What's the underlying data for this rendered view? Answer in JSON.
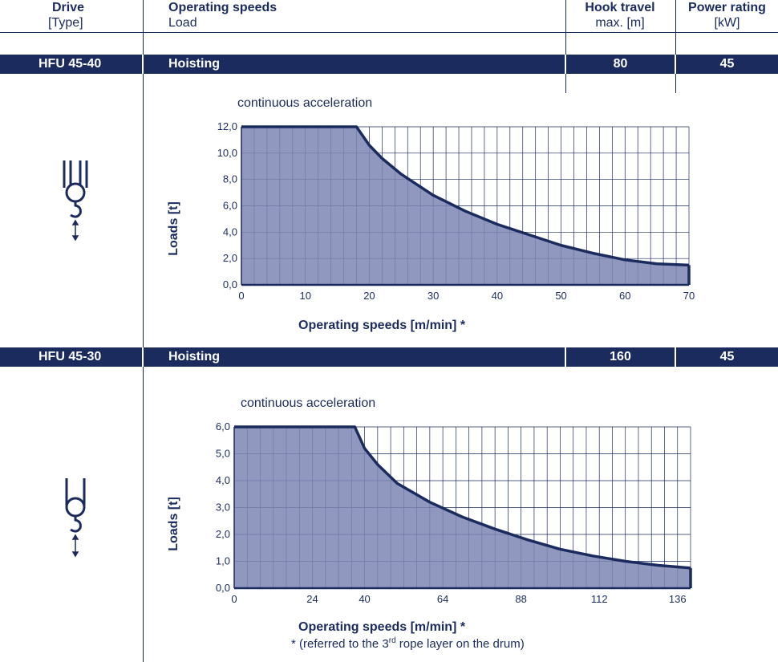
{
  "header": {
    "col1_title": "Drive",
    "col1_sub": "[Type]",
    "col2_title": "Operating speeds",
    "col2_sub": "Load",
    "col3_title": "Hook travel",
    "col3_sub": "max. [m]",
    "col4_title": "Power rating",
    "col4_sub": "[kW]"
  },
  "rows": [
    {
      "type": "HFU 45-40",
      "operation": "Hoisting",
      "hook_travel": "80",
      "power": "45"
    },
    {
      "type": "HFU 45-30",
      "operation": "Hoisting",
      "hook_travel": "160",
      "power": "45"
    }
  ],
  "icons": [
    "hoist-hook-4-rope-icon",
    "hoist-hook-2-rope-icon"
  ],
  "footnote": {
    "prefix": "* (referred to the 3",
    "sup": "rd",
    "suffix": " rope layer on the drum)"
  },
  "colors": {
    "navy": "#1b2b5e",
    "fill": "#7d86b4",
    "grid": "#1b2b5e",
    "background": "#ffffff"
  },
  "chart_data": [
    {
      "type": "area",
      "title": "continuous acceleration",
      "xlabel": "Operating speeds [m/min] *",
      "ylabel": "Loads [t]",
      "xlim": [
        0,
        70
      ],
      "ylim": [
        0,
        12
      ],
      "x_ticks": [
        0,
        10,
        20,
        30,
        40,
        50,
        60,
        70
      ],
      "x_tick_labels": [
        "0",
        "10",
        "20",
        "30",
        "40",
        "50",
        "60",
        "70"
      ],
      "y_ticks": [
        0,
        2,
        4,
        6,
        8,
        10,
        12
      ],
      "y_tick_labels": [
        "0,0",
        "2,0",
        "4,0",
        "6,0",
        "8,0",
        "10,0",
        "12,0"
      ],
      "grid": true,
      "x_minor_step": 2,
      "y_minor_step": 2,
      "x": [
        0,
        18,
        20,
        22,
        25,
        30,
        35,
        40,
        45,
        50,
        55,
        60,
        65,
        70
      ],
      "y": [
        12,
        12,
        10.6,
        9.6,
        8.4,
        6.8,
        5.6,
        4.6,
        3.8,
        3.0,
        2.4,
        1.9,
        1.6,
        1.5
      ]
    },
    {
      "type": "area",
      "title": "continuous acceleration",
      "xlabel": "Operating speeds [m/min] *",
      "ylabel": "Loads [t]",
      "xlim": [
        0,
        140
      ],
      "ylim": [
        0,
        6
      ],
      "x_ticks": [
        0,
        24,
        40,
        64,
        88,
        112,
        136
      ],
      "x_tick_labels": [
        "0",
        "24",
        "40",
        "64",
        "88",
        "112",
        "136"
      ],
      "y_ticks": [
        0,
        1,
        2,
        3,
        4,
        5,
        6
      ],
      "y_tick_labels": [
        "0,0",
        "1,0",
        "2,0",
        "3,0",
        "4,0",
        "5,0",
        "6,0"
      ],
      "grid": true,
      "x_minor_step": 4,
      "y_minor_step": 1,
      "x": [
        0,
        37,
        40,
        44,
        50,
        60,
        70,
        80,
        90,
        100,
        110,
        120,
        130,
        140
      ],
      "y": [
        6,
        6,
        5.2,
        4.6,
        3.9,
        3.2,
        2.65,
        2.2,
        1.8,
        1.45,
        1.2,
        1.0,
        0.85,
        0.75
      ]
    }
  ]
}
